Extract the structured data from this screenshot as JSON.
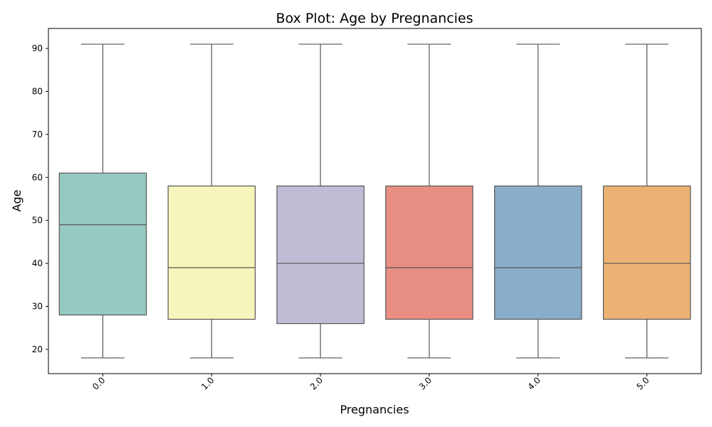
{
  "chart_data": {
    "type": "box",
    "title": "Box Plot: Age by Pregnancies",
    "xlabel": "Pregnancies",
    "ylabel": "Age",
    "categories": [
      "0.0",
      "1.0",
      "2.0",
      "3.0",
      "4.0",
      "5.0"
    ],
    "boxes": [
      {
        "min": 18,
        "q1": 28,
        "median": 49,
        "q3": 61,
        "max": 91
      },
      {
        "min": 18,
        "q1": 27,
        "median": 39,
        "q3": 58,
        "max": 91
      },
      {
        "min": 18,
        "q1": 26,
        "median": 40,
        "q3": 58,
        "max": 91
      },
      {
        "min": 18,
        "q1": 27,
        "median": 39,
        "q3": 58,
        "max": 91
      },
      {
        "min": 18,
        "q1": 27,
        "median": 39,
        "q3": 58,
        "max": 91
      },
      {
        "min": 18,
        "q1": 27,
        "median": 40,
        "q3": 58,
        "max": 91
      }
    ],
    "colors": [
      "#96cac1",
      "#f6f6bc",
      "#c0bcd6",
      "#e98e83",
      "#89aeca",
      "#ebb274"
    ],
    "edge_color": "#555555",
    "yticks": [
      20,
      30,
      40,
      50,
      60,
      70,
      80,
      90
    ],
    "ylim": [
      14.35,
      94.65
    ],
    "grid": false,
    "legend": false
  }
}
